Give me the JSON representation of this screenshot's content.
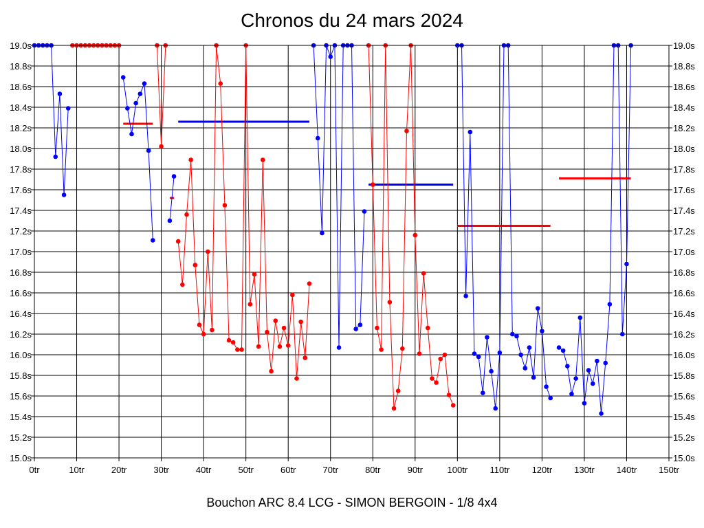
{
  "chart_data": {
    "type": "line",
    "title": "Chronos du 24 mars 2024",
    "caption": "Bouchon ARC 8.4 LCG - SIMON BERGOIN - 1/8 4x4",
    "xlim": [
      0,
      150
    ],
    "ylim": [
      15.0,
      19.0
    ],
    "xticks": [
      0,
      10,
      20,
      30,
      40,
      50,
      60,
      70,
      80,
      90,
      100,
      110,
      120,
      130,
      140,
      150
    ],
    "xtick_labels": [
      "0tr",
      "10tr",
      "20tr",
      "30tr",
      "40tr",
      "50tr",
      "60tr",
      "70tr",
      "80tr",
      "90tr",
      "100tr",
      "110tr",
      "120tr",
      "130tr",
      "140tr",
      "150tr"
    ],
    "yticks": [
      15.0,
      15.2,
      15.4,
      15.6,
      15.8,
      16.0,
      16.2,
      16.4,
      16.6,
      16.8,
      17.0,
      17.2,
      17.4,
      17.6,
      17.8,
      18.0,
      18.2,
      18.4,
      18.6,
      18.8,
      19.0
    ],
    "ytick_labels": [
      "15.0s",
      "15.2s",
      "15.4s",
      "15.6s",
      "15.8s",
      "16.0s",
      "16.2s",
      "16.4s",
      "16.6s",
      "16.8s",
      "17.0s",
      "17.2s",
      "17.4s",
      "17.6s",
      "17.8s",
      "18.0s",
      "18.2s",
      "18.4s",
      "18.6s",
      "18.8s",
      "19.0s"
    ],
    "grid": true,
    "colors": {
      "blue": "#0000ff",
      "red": "#ff0000"
    },
    "series": [
      {
        "name": "stint-1",
        "color": "blue",
        "x": [
          0,
          1,
          2,
          3,
          4,
          5,
          6,
          7,
          8
        ],
        "y": [
          19.0,
          19.0,
          19.0,
          19.0,
          19.0,
          17.92,
          18.53,
          17.55,
          18.39
        ]
      },
      {
        "name": "stint-2",
        "color": "red",
        "x": [
          9,
          10,
          11,
          12,
          13,
          14,
          15,
          16,
          17,
          18,
          19,
          20
        ],
        "y": [
          19.0,
          19.0,
          19.0,
          19.0,
          19.0,
          19.0,
          19.0,
          19.0,
          19.0,
          19.0,
          19.0,
          19.0
        ]
      },
      {
        "name": "stint-3",
        "color": "blue",
        "x": [
          21,
          22,
          23,
          24,
          25,
          26,
          27,
          28
        ],
        "y": [
          18.69,
          18.39,
          18.14,
          18.44,
          18.53,
          18.63,
          17.98,
          17.11
        ]
      },
      {
        "name": "stint-4",
        "color": "red",
        "x": [
          29,
          30,
          31
        ],
        "y": [
          19.0,
          18.02,
          19.0
        ]
      },
      {
        "name": "stint-5",
        "color": "blue",
        "x": [
          32,
          33
        ],
        "y": [
          17.3,
          17.73
        ]
      },
      {
        "name": "stint-6",
        "color": "red",
        "x": [
          34,
          35,
          36,
          37,
          38,
          39,
          40,
          41,
          42,
          43,
          44,
          45,
          46,
          47,
          48,
          49,
          50,
          51,
          52,
          53,
          54,
          55,
          56,
          57,
          58,
          59,
          60,
          61,
          62,
          63,
          64,
          65
        ],
        "y": [
          17.1,
          16.68,
          17.36,
          17.89,
          16.87,
          16.29,
          16.2,
          17.0,
          16.24,
          19.0,
          18.63,
          17.45,
          16.14,
          16.12,
          16.05,
          16.05,
          19.0,
          16.49,
          16.78,
          16.08,
          17.89,
          16.22,
          15.84,
          16.33,
          16.08,
          16.26,
          16.09,
          16.58,
          15.77,
          16.32,
          15.97,
          16.69
        ]
      },
      {
        "name": "stint-7",
        "color": "blue",
        "x": [
          66,
          67,
          68,
          69,
          70,
          71,
          72,
          73,
          74,
          75,
          76,
          77,
          78
        ],
        "y": [
          19.0,
          18.1,
          17.18,
          19.0,
          18.89,
          19.0,
          16.07,
          19.0,
          19.0,
          19.0,
          16.25,
          16.29,
          17.39
        ]
      },
      {
        "name": "stint-8",
        "color": "red",
        "x": [
          79,
          80,
          81,
          82,
          83,
          84,
          85,
          86,
          87,
          88,
          89,
          90,
          91,
          92,
          93,
          94,
          95,
          96,
          97,
          98,
          99
        ],
        "y": [
          19.0,
          17.65,
          16.26,
          16.05,
          19.0,
          16.51,
          15.48,
          15.65,
          16.06,
          18.17,
          19.0,
          17.16,
          16.01,
          16.79,
          16.26,
          15.77,
          15.73,
          15.96,
          16.0,
          15.61,
          15.51
        ]
      },
      {
        "name": "stint-9",
        "color": "blue",
        "x": [
          100,
          101,
          102,
          103,
          104,
          105,
          106,
          107,
          108,
          109,
          110,
          111,
          112,
          113,
          114,
          115,
          116,
          117,
          118,
          119,
          120,
          121,
          122
        ],
        "y": [
          19.0,
          19.0,
          16.57,
          18.16,
          16.01,
          15.98,
          15.63,
          16.17,
          15.84,
          15.48,
          16.02,
          19.0,
          19.0,
          16.2,
          16.18,
          16.0,
          15.87,
          16.07,
          15.78,
          16.45,
          16.23,
          15.69,
          15.58
        ]
      },
      {
        "name": "stint-10",
        "color": "blue",
        "x": [
          124,
          125,
          126,
          127,
          128,
          129,
          130,
          131,
          132,
          133,
          134,
          135,
          136,
          137,
          138,
          139,
          140,
          141
        ],
        "y": [
          16.07,
          16.04,
          15.89,
          15.62,
          15.77,
          16.36,
          15.53,
          15.85,
          15.72,
          15.94,
          15.43,
          15.92,
          16.49,
          19.0,
          19.0,
          16.2,
          16.88,
          19.0
        ]
      }
    ],
    "averages": [
      {
        "color": "red",
        "x1": 21,
        "x2": 28,
        "y": 18.24
      },
      {
        "color": "red",
        "x1": 32,
        "x2": 33,
        "y": 17.52
      },
      {
        "color": "blue",
        "x1": 34,
        "x2": 65,
        "y": 18.26
      },
      {
        "color": "blue",
        "x1": 79,
        "x2": 99,
        "y": 17.65
      },
      {
        "color": "red",
        "x1": 100,
        "x2": 122,
        "y": 17.25
      },
      {
        "color": "red",
        "x1": 124,
        "x2": 141,
        "y": 17.71
      }
    ]
  }
}
